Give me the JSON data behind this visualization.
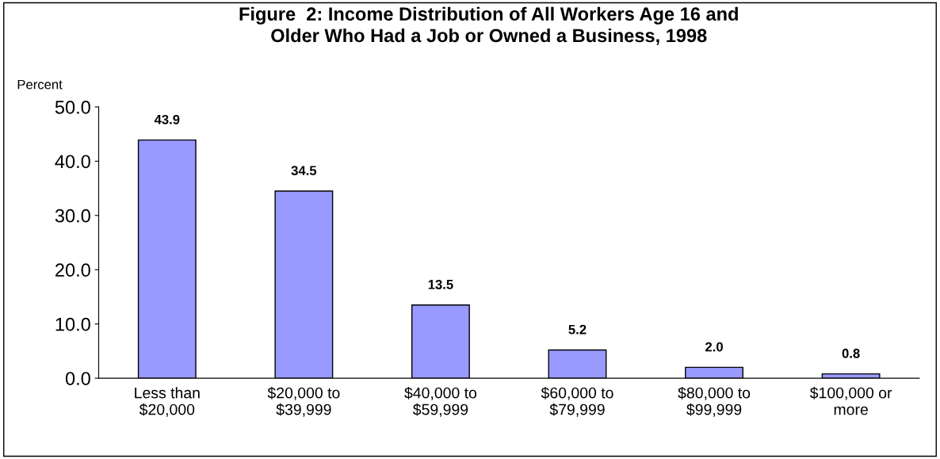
{
  "chart_data": {
    "type": "bar",
    "title": "Figure  2: Income Distribution of All Workers Age 16 and\nOlder Who Had a Job or Owned a Business, 1998",
    "ylabel": "Percent",
    "categories": [
      "Less than\n$20,000",
      "$20,000 to\n$39,999",
      "$40,000 to\n$59,999",
      "$60,000 to\n$79,999",
      "$80,000 to\n$99,999",
      "$100,000 or\nmore"
    ],
    "values": [
      43.9,
      34.5,
      13.5,
      5.2,
      2.0,
      0.8
    ],
    "color": "#9999ff",
    "ylim": [
      0,
      50
    ],
    "yticks": [
      {
        "value": 0,
        "label": "0.0"
      },
      {
        "value": 10,
        "label": "10.0"
      },
      {
        "value": 20,
        "label": "20.0"
      },
      {
        "value": 30,
        "label": "30.0"
      },
      {
        "value": 40,
        "label": "40.0"
      },
      {
        "value": 50,
        "label": "50.0"
      }
    ],
    "value_labels": [
      "43.9",
      "34.5",
      "13.5",
      "5.2",
      "2.0",
      "0.8"
    ],
    "grid": false,
    "legend": false
  }
}
